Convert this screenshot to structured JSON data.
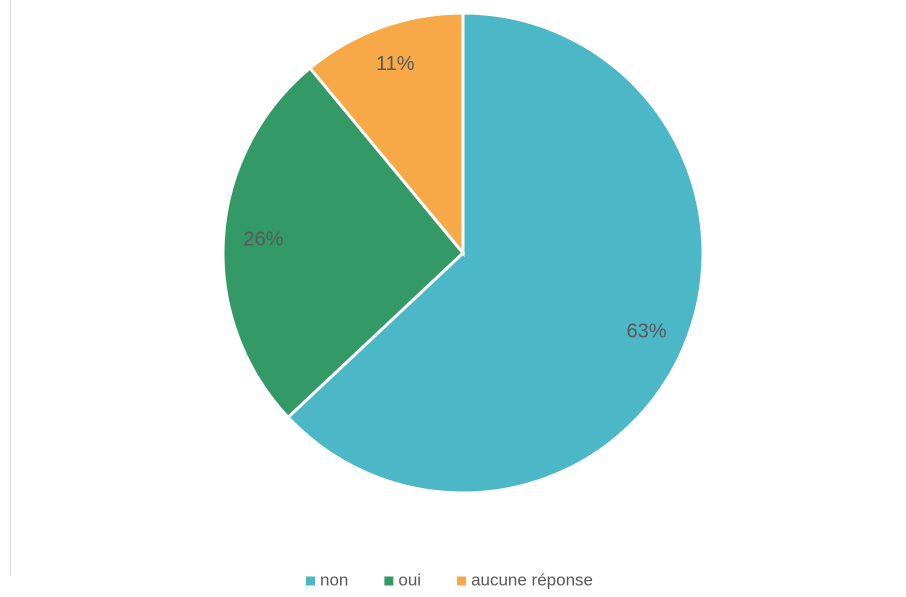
{
  "chart_data": {
    "type": "pie",
    "categories": [
      "non",
      "oui",
      "aucune réponse"
    ],
    "values": [
      63,
      26,
      11
    ],
    "value_labels": [
      "63%",
      "26%",
      "11%"
    ],
    "colors": [
      "#4bb7c7",
      "#339966",
      "#f7a947"
    ],
    "legend": "bottom"
  }
}
